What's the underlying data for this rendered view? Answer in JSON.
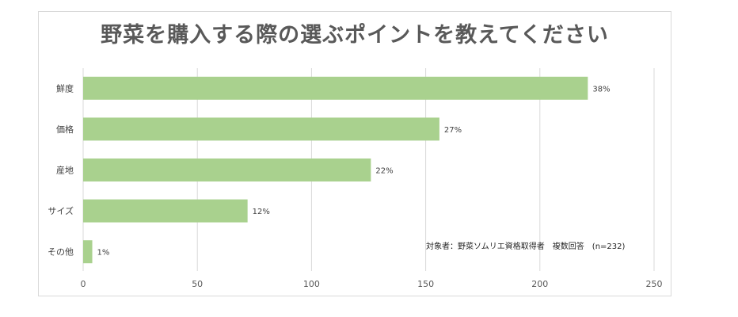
{
  "chart_data": {
    "type": "bar",
    "orientation": "horizontal",
    "title": "野菜を購入する際の選ぶポイントを教えてください",
    "categories": [
      "鮮度",
      "価格",
      "産地",
      "サイズ",
      "その他"
    ],
    "values": [
      221,
      156,
      126,
      72,
      4
    ],
    "data_labels": [
      "38%",
      "27%",
      "22%",
      "12%",
      "1%"
    ],
    "xlim": [
      0,
      250
    ],
    "x_ticks": [
      0,
      50,
      100,
      150,
      200,
      250
    ],
    "grid": true,
    "bar_color": "#a9d18e",
    "annotation": "対象者：野菜ソムリエ資格取得者　複数回答　(n=232)"
  }
}
